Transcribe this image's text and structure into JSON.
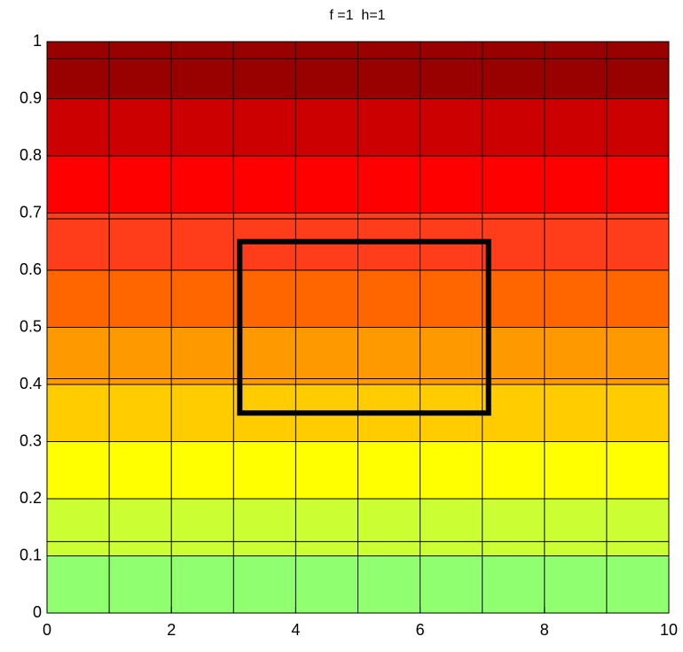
{
  "chart_data": {
    "type": "contourf",
    "title": "f =1  h=1",
    "xlim": [
      0,
      10
    ],
    "ylim": [
      0,
      1
    ],
    "xticks": [
      0,
      2,
      4,
      6,
      8,
      10
    ],
    "yticks": [
      0,
      0.1,
      0.2,
      0.3,
      0.4,
      0.5,
      0.6,
      0.7,
      0.8,
      0.9,
      1
    ],
    "bands": [
      {
        "from": 0,
        "to": 0.1,
        "color": "#90ff70"
      },
      {
        "from": 0.1,
        "to": 0.2,
        "color": "#ccff33"
      },
      {
        "from": 0.2,
        "to": 0.3,
        "color": "#ffff00"
      },
      {
        "from": 0.3,
        "to": 0.4,
        "color": "#ffcc00"
      },
      {
        "from": 0.4,
        "to": 0.5,
        "color": "#ff9900"
      },
      {
        "from": 0.5,
        "to": 0.6,
        "color": "#ff6600"
      },
      {
        "from": 0.6,
        "to": 0.7,
        "color": "#ff3d1a"
      },
      {
        "from": 0.7,
        "to": 0.8,
        "color": "#ff0000"
      },
      {
        "from": 0.8,
        "to": 0.9,
        "color": "#cc0000"
      },
      {
        "from": 0.9,
        "to": 1,
        "color": "#990000"
      }
    ],
    "mesh_x": [
      1,
      2,
      3,
      4,
      5,
      6,
      7,
      8,
      9
    ],
    "mesh_y": [
      0.1,
      0.125,
      0.2,
      0.3,
      0.4,
      0.41,
      0.5,
      0.6,
      0.69,
      0.7,
      0.8,
      0.9,
      0.97
    ],
    "rectangle": {
      "x": [
        3.1,
        7.1
      ],
      "y": [
        0.35,
        0.65
      ],
      "color": "#000000"
    }
  }
}
